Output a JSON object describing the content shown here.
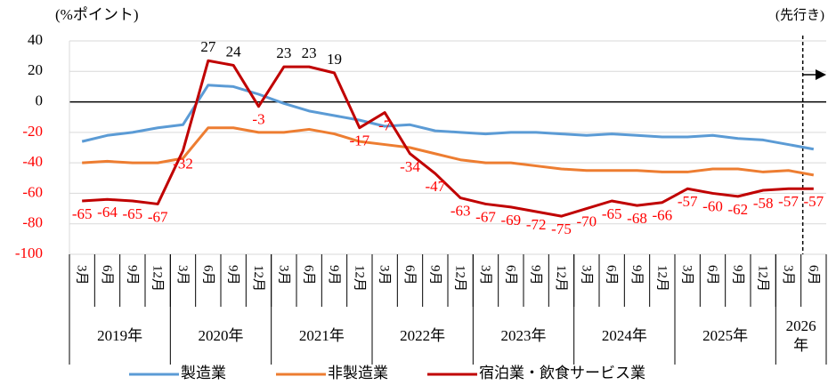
{
  "chart_data": {
    "type": "line",
    "unit_label": "(%ポイント)",
    "forecast_label": "(先行き)",
    "categories": [
      "3月",
      "6月",
      "9月",
      "12月",
      "3月",
      "6月",
      "9月",
      "12月",
      "3月",
      "6月",
      "9月",
      "12月",
      "3月",
      "6月",
      "9月",
      "12月",
      "3月",
      "6月",
      "9月",
      "12月",
      "3月",
      "6月",
      "9月",
      "12月",
      "3月",
      "6月",
      "9月",
      "12月",
      "3月",
      "6月"
    ],
    "category_groups": [
      {
        "label": "2019年",
        "count": 4
      },
      {
        "label": "2020年",
        "count": 4
      },
      {
        "label": "2021年",
        "count": 4
      },
      {
        "label": "2022年",
        "count": 4
      },
      {
        "label": "2023年",
        "count": 4
      },
      {
        "label": "2024年",
        "count": 4
      },
      {
        "label": "2025年",
        "count": 4
      },
      {
        "label": "2026年",
        "count": 2
      }
    ],
    "series": [
      {
        "name": "製造業",
        "color": "#5b9bd5",
        "values": [
          -26,
          -22,
          -20,
          -17,
          -15,
          11,
          10,
          5,
          -1,
          -6,
          -9,
          -12,
          -16,
          -15,
          -19,
          -20,
          -21,
          -20,
          -20,
          -21,
          -22,
          -21,
          -22,
          -23,
          -23,
          -22,
          -24,
          -25,
          -28,
          -31
        ]
      },
      {
        "name": "非製造業",
        "color": "#ed7d31",
        "values": [
          -40,
          -39,
          -40,
          -40,
          -37,
          -17,
          -17,
          -20,
          -20,
          -18,
          -21,
          -26,
          -28,
          -30,
          -34,
          -38,
          -40,
          -40,
          -42,
          -44,
          -45,
          -45,
          -45,
          -46,
          -46,
          -44,
          -44,
          -46,
          -45,
          -48
        ]
      },
      {
        "name": "宿泊業・飲食サービス業",
        "color": "#c00000",
        "data_labels": true,
        "values": [
          -65,
          -64,
          -65,
          -67,
          -32,
          27,
          24,
          -3,
          23,
          23,
          19,
          -17,
          -7,
          -34,
          -47,
          -63,
          -67,
          -69,
          -72,
          -75,
          -70,
          -65,
          -68,
          -66,
          -57,
          -60,
          -62,
          -58,
          -57,
          -57
        ]
      }
    ],
    "negative_color": "#ff0000",
    "ylim": [
      -100,
      40
    ],
    "yticks": [
      -100,
      -80,
      -60,
      -40,
      -20,
      0,
      20,
      40
    ],
    "grid": true
  }
}
